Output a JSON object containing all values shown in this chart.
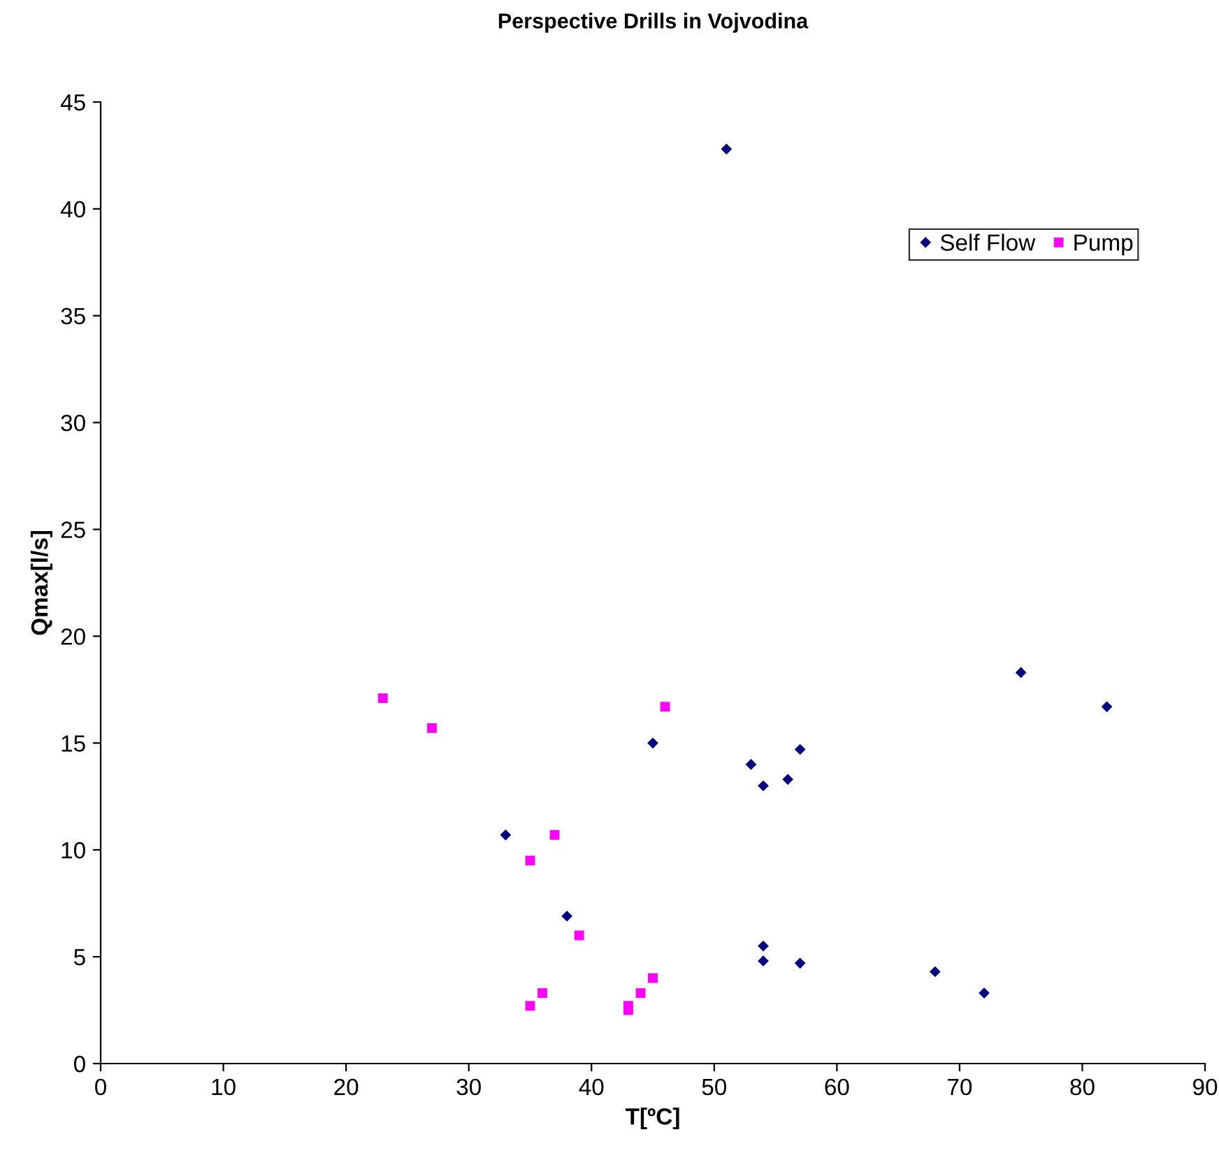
{
  "chart_data": {
    "type": "scatter",
    "title": "Perspective Drills in Vojvodina",
    "xlabel": "T[ºC]",
    "ylabel": "Qmax[l/s]",
    "xlim": [
      0,
      90
    ],
    "xticks": [
      0,
      10,
      20,
      30,
      40,
      50,
      60,
      70,
      80,
      90
    ],
    "ylim": [
      0,
      45
    ],
    "yticks": [
      0,
      5,
      10,
      15,
      20,
      25,
      30,
      35,
      40,
      45
    ],
    "grid": false,
    "legend": "top right",
    "series": [
      {
        "name": "Self Flow",
        "color": "#000080",
        "marker": "diamond",
        "x": [
          51,
          75,
          82,
          68,
          72,
          45,
          53,
          54,
          57,
          56,
          33,
          38,
          54,
          54,
          57
        ],
        "values": [
          42.8,
          18.3,
          16.7,
          4.3,
          3.3,
          15.0,
          14.0,
          13.0,
          14.7,
          13.3,
          10.7,
          6.9,
          5.5,
          4.8,
          4.7
        ]
      },
      {
        "name": "Pump",
        "color": "#ff00ff",
        "marker": "square",
        "x": [
          23,
          27,
          46,
          37,
          35,
          39,
          45,
          44,
          36,
          35,
          43,
          43
        ],
        "values": [
          17.1,
          15.7,
          16.7,
          10.7,
          9.5,
          6.0,
          4.0,
          3.3,
          3.3,
          2.7,
          2.7,
          2.5
        ]
      }
    ]
  }
}
